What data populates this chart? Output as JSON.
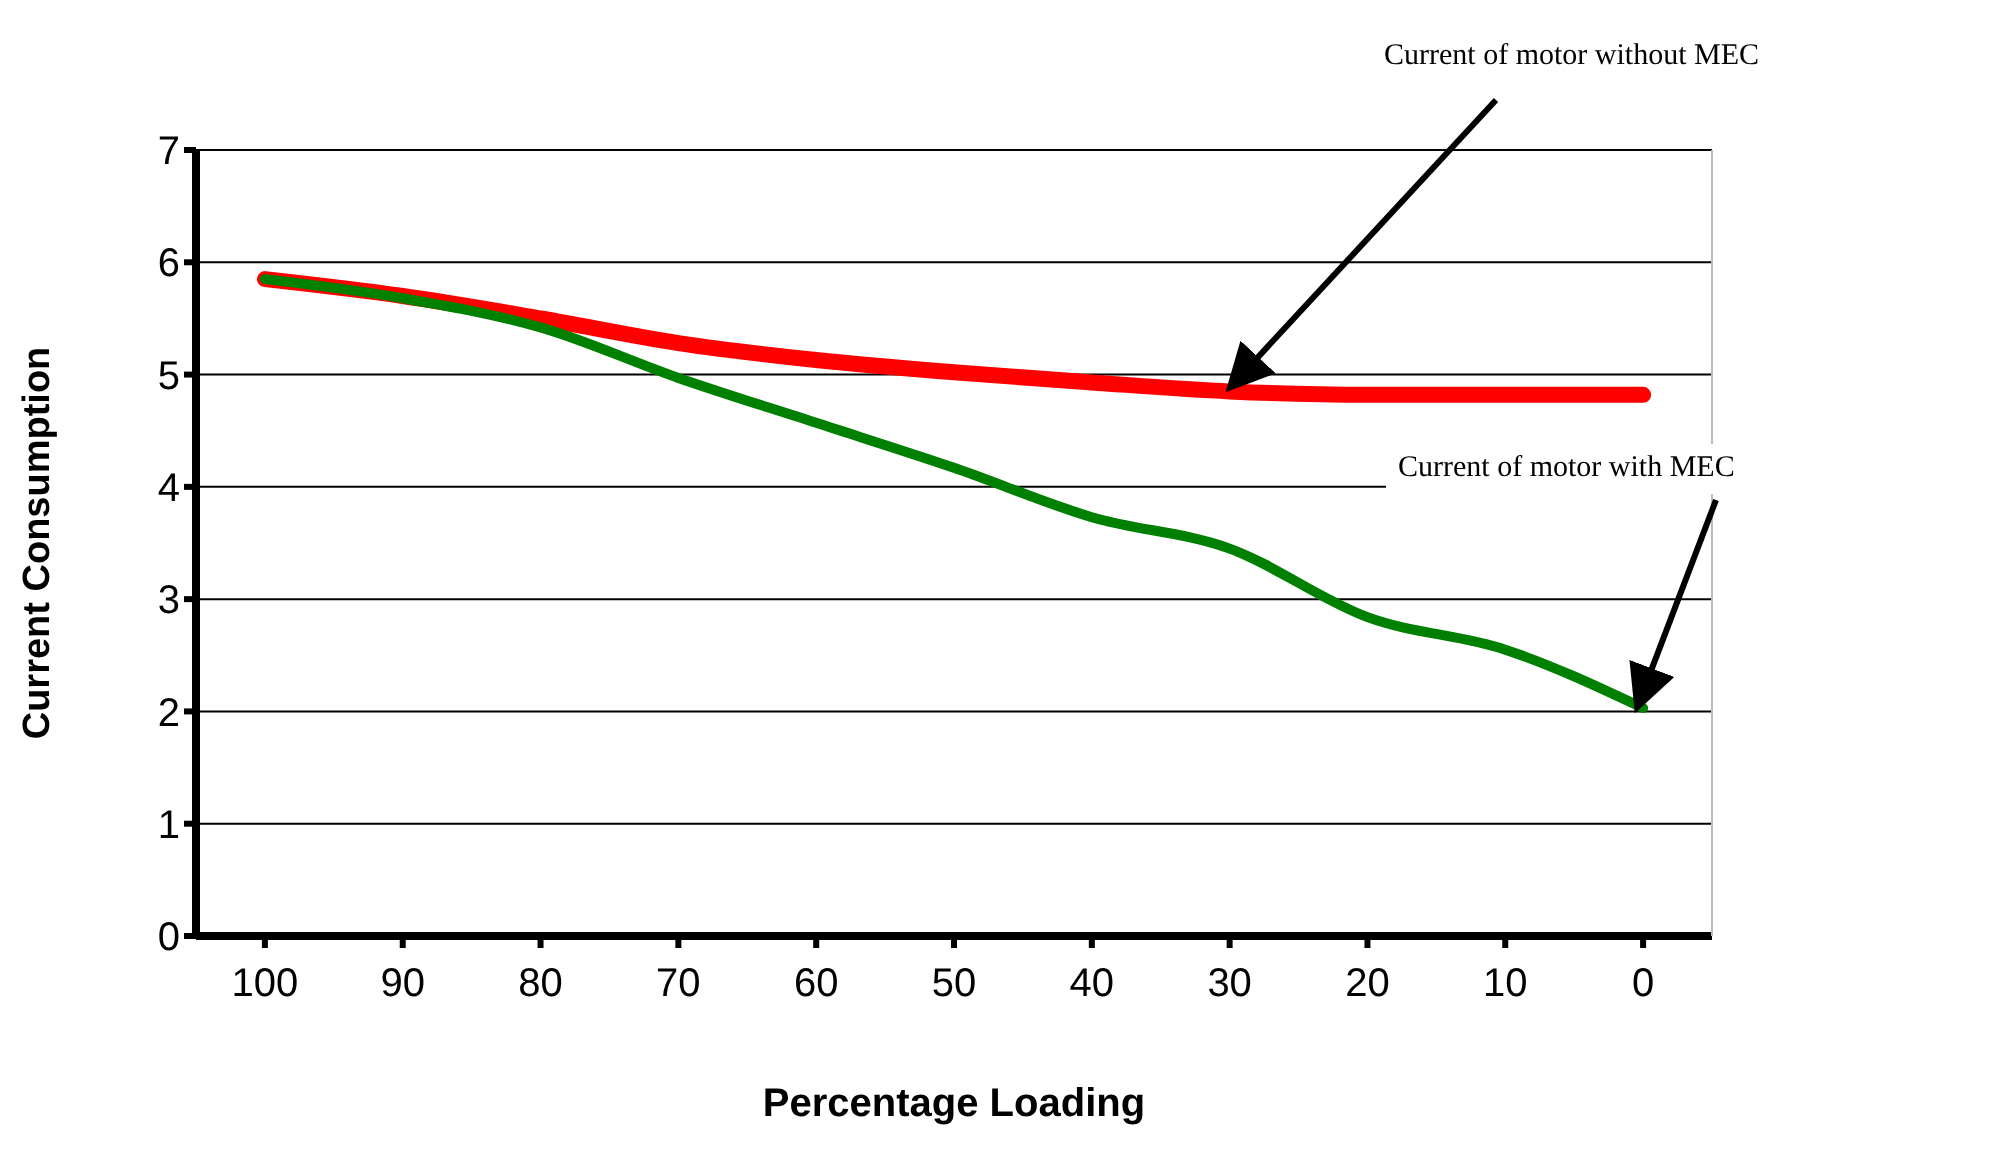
{
  "chart_data": {
    "type": "line",
    "xlabel": "Percentage Loading",
    "ylabel": "Current Consumption",
    "categories": [
      "100",
      "90",
      "80",
      "70",
      "60",
      "50",
      "40",
      "30",
      "20",
      "10",
      "0"
    ],
    "series": [
      {
        "color": "#ff0000",
        "values": [
          5.85,
          5.7,
          5.5,
          5.28,
          5.13,
          5.02,
          4.93,
          4.85,
          4.82,
          4.82,
          4.82
        ]
      },
      {
        "color": "#008000",
        "values": [
          5.85,
          5.68,
          5.42,
          4.97,
          4.57,
          4.17,
          3.73,
          3.45,
          2.84,
          2.55,
          2.03
        ]
      }
    ],
    "ylim": [
      0,
      7
    ],
    "yticks": [
      0,
      1,
      2,
      3,
      4,
      5,
      6,
      7
    ],
    "grid": "y",
    "legend": false,
    "marker": "none",
    "line_style": "solid",
    "annotations": [
      {
        "text": "Current of motor without MEC",
        "x": "30",
        "y": 4.85
      },
      {
        "text": "Current of motor with MEC",
        "x": "0",
        "y": 2.03
      }
    ]
  }
}
